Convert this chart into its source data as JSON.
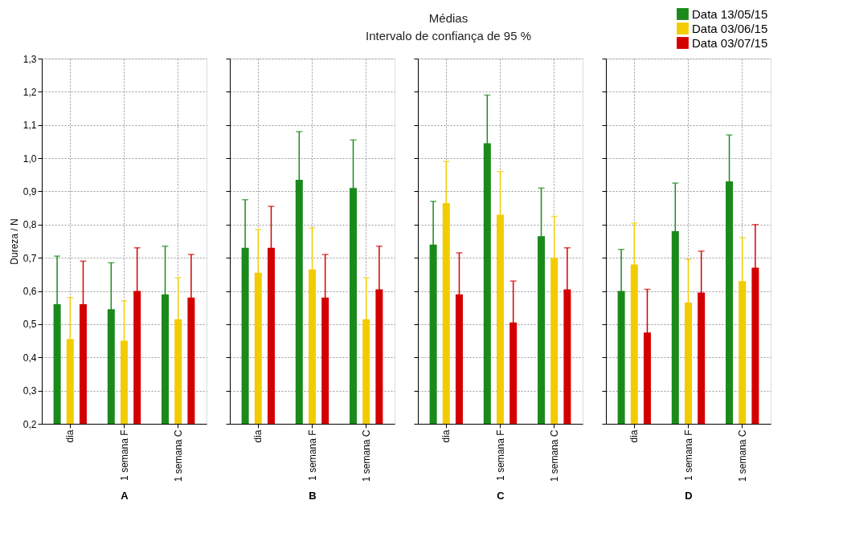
{
  "chart_data": [
    {
      "type": "other",
      "title": "Médias",
      "subtitle": "Intervalo de confiança de 95 %"
    },
    {
      "type": "bar",
      "xlabel": "A",
      "ylabel": "Dureza / N",
      "categories": [
        "dia",
        "1 semana F",
        "1 semana C"
      ],
      "ylim": [
        0.2,
        1.3
      ],
      "yticks": [
        {
          "value": 0.2,
          "label": "0,2"
        },
        {
          "value": 0.3,
          "label": "0,3"
        },
        {
          "value": 0.4,
          "label": "0,4"
        },
        {
          "value": 0.5,
          "label": "0,5"
        },
        {
          "value": 0.6,
          "label": "0,6"
        },
        {
          "value": 0.7,
          "label": "0,7"
        },
        {
          "value": 0.8,
          "label": "0,8"
        },
        {
          "value": 0.9,
          "label": "0,9"
        },
        {
          "value": 1.0,
          "label": "1,0"
        },
        {
          "value": 1.1,
          "label": "1,1"
        },
        {
          "value": 1.2,
          "label": "1,2"
        },
        {
          "value": 1.3,
          "label": "1,3"
        }
      ],
      "grid": true,
      "legend": "top right",
      "series": [
        {
          "name": "Data 13/05/15",
          "color": "#1a8a1a",
          "values": [
            0.56,
            0.545,
            0.59
          ],
          "errors": [
            0.145,
            0.14,
            0.145
          ]
        },
        {
          "name": "Data 03/06/15",
          "color": "#f2cc00",
          "values": [
            0.455,
            0.45,
            0.515
          ],
          "errors": [
            0.125,
            0.12,
            0.125
          ]
        },
        {
          "name": "Data 03/07/15",
          "color": "#d40000",
          "values": [
            0.56,
            0.6,
            0.58
          ],
          "errors": [
            0.13,
            0.13,
            0.13
          ]
        }
      ]
    },
    {
      "type": "bar",
      "xlabel": "B",
      "categories": [
        "dia",
        "1 semana F",
        "1 semana C"
      ],
      "ylim": [
        0.2,
        1.3
      ],
      "tick_labels": "x",
      "grid": true,
      "series": [
        {
          "name": "Data 13/05/15",
          "color": "#1a8a1a",
          "values": [
            0.73,
            0.935,
            0.91
          ],
          "errors": [
            0.145,
            0.145,
            0.145
          ]
        },
        {
          "name": "Data 03/06/15",
          "color": "#f2cc00",
          "values": [
            0.655,
            0.665,
            0.515
          ],
          "errors": [
            0.13,
            0.125,
            0.125
          ]
        },
        {
          "name": "Data 03/07/15",
          "color": "#d40000",
          "values": [
            0.73,
            0.58,
            0.605
          ],
          "errors": [
            0.125,
            0.13,
            0.13
          ]
        }
      ]
    },
    {
      "type": "bar",
      "xlabel": "C",
      "categories": [
        "dia",
        "1 semana F",
        "1 semana C"
      ],
      "ylim": [
        0.2,
        1.3
      ],
      "tick_labels": "x",
      "grid": true,
      "series": [
        {
          "name": "Data 13/05/15",
          "color": "#1a8a1a",
          "values": [
            0.74,
            1.045,
            0.765
          ],
          "errors": [
            0.13,
            0.145,
            0.145
          ]
        },
        {
          "name": "Data 03/06/15",
          "color": "#f2cc00",
          "values": [
            0.865,
            0.83,
            0.7
          ],
          "errors": [
            0.125,
            0.13,
            0.125
          ]
        },
        {
          "name": "Data 03/07/15",
          "color": "#d40000",
          "values": [
            0.59,
            0.505,
            0.605
          ],
          "errors": [
            0.125,
            0.125,
            0.125
          ]
        }
      ]
    },
    {
      "type": "bar",
      "xlabel": "D",
      "categories": [
        "dia",
        "1 semana F",
        "1 semana C"
      ],
      "ylim": [
        0.2,
        1.3
      ],
      "tick_labels": "x",
      "grid": true,
      "series": [
        {
          "name": "Data 13/05/15",
          "color": "#1a8a1a",
          "values": [
            0.6,
            0.78,
            0.93
          ],
          "errors": [
            0.125,
            0.145,
            0.14
          ]
        },
        {
          "name": "Data 03/06/15",
          "color": "#f2cc00",
          "values": [
            0.68,
            0.565,
            0.63
          ],
          "errors": [
            0.125,
            0.13,
            0.13
          ]
        },
        {
          "name": "Data 03/07/15",
          "color": "#d40000",
          "values": [
            0.475,
            0.595,
            0.67
          ],
          "errors": [
            0.13,
            0.125,
            0.13
          ]
        }
      ]
    }
  ]
}
